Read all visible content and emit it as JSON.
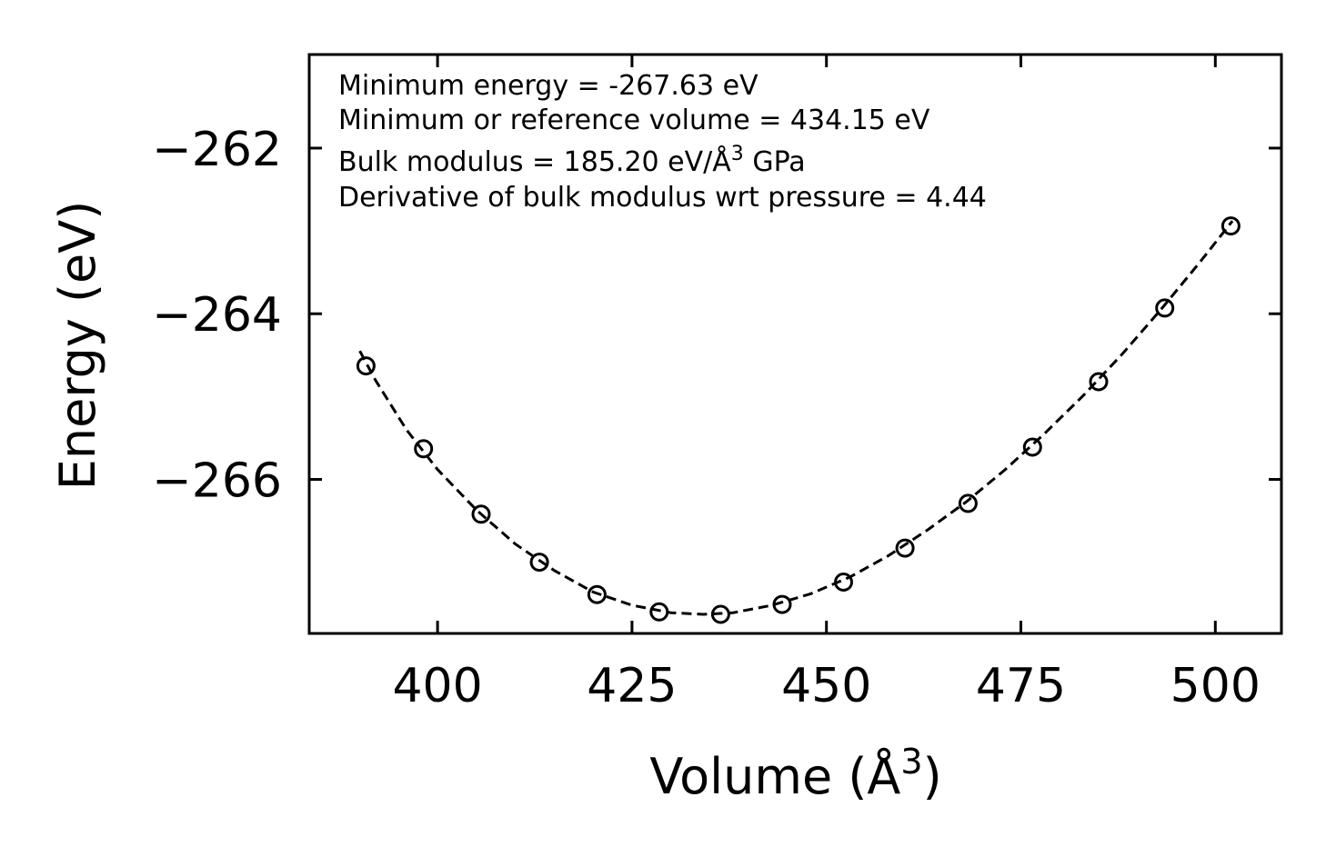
{
  "chart_data": {
    "type": "scatter",
    "title": "",
    "xlabel": "Volume (Å",
    "xlabel_sup": "3",
    "xlabel_close": ")",
    "ylabel": "Energy (eV)",
    "xlim": [
      383.5,
      508.5
    ],
    "ylim": [
      -267.86,
      -260.87
    ],
    "xticks": [
      400,
      425,
      450,
      475,
      500
    ],
    "xtick_labels": [
      "400",
      "425",
      "450",
      "475",
      "500"
    ],
    "yticks": [
      -262,
      -264,
      -266
    ],
    "ytick_labels": [
      "−262",
      "−264",
      "−266"
    ],
    "series": [
      {
        "name": "data",
        "marker": "open-circle",
        "x": [
          390.8,
          398.2,
          405.6,
          413.1,
          420.5,
          428.5,
          436.4,
          444.3,
          452.2,
          460.1,
          468.2,
          476.5,
          485.0,
          493.5,
          502.0
        ],
        "y": [
          -264.63,
          -265.63,
          -266.42,
          -267.0,
          -267.39,
          -267.6,
          -267.63,
          -267.51,
          -267.24,
          -266.83,
          -266.29,
          -265.61,
          -264.82,
          -263.93,
          -262.94
        ]
      },
      {
        "name": "fit",
        "style": "dashed",
        "x": [
          390.0,
          392.0,
          396.0,
          400.0,
          405.0,
          410.0,
          415.0,
          420.0,
          425.0,
          430.0,
          434.15,
          438.0,
          443.0,
          448.0,
          453.0,
          458.0,
          463.0,
          468.0,
          473.0,
          478.0,
          483.0,
          488.0,
          493.0,
          498.0,
          502.2
        ],
        "y": [
          -264.45,
          -264.8,
          -265.4,
          -265.88,
          -266.37,
          -266.78,
          -267.1,
          -267.36,
          -267.52,
          -267.61,
          -267.63,
          -267.61,
          -267.52,
          -267.38,
          -267.18,
          -266.92,
          -266.61,
          -266.27,
          -265.88,
          -265.45,
          -264.99,
          -264.49,
          -263.95,
          -263.38,
          -262.88
        ]
      }
    ],
    "annotations": [
      "Minimum energy = -267.63 eV",
      "Minimum or reference volume = 434.15 eV",
      "Bulk modulus = 185.20 eV/Å",
      "3",
      " GPa",
      "Derivative of bulk modulus wrt pressure = 4.44"
    ],
    "grid": false,
    "legend": "none"
  }
}
